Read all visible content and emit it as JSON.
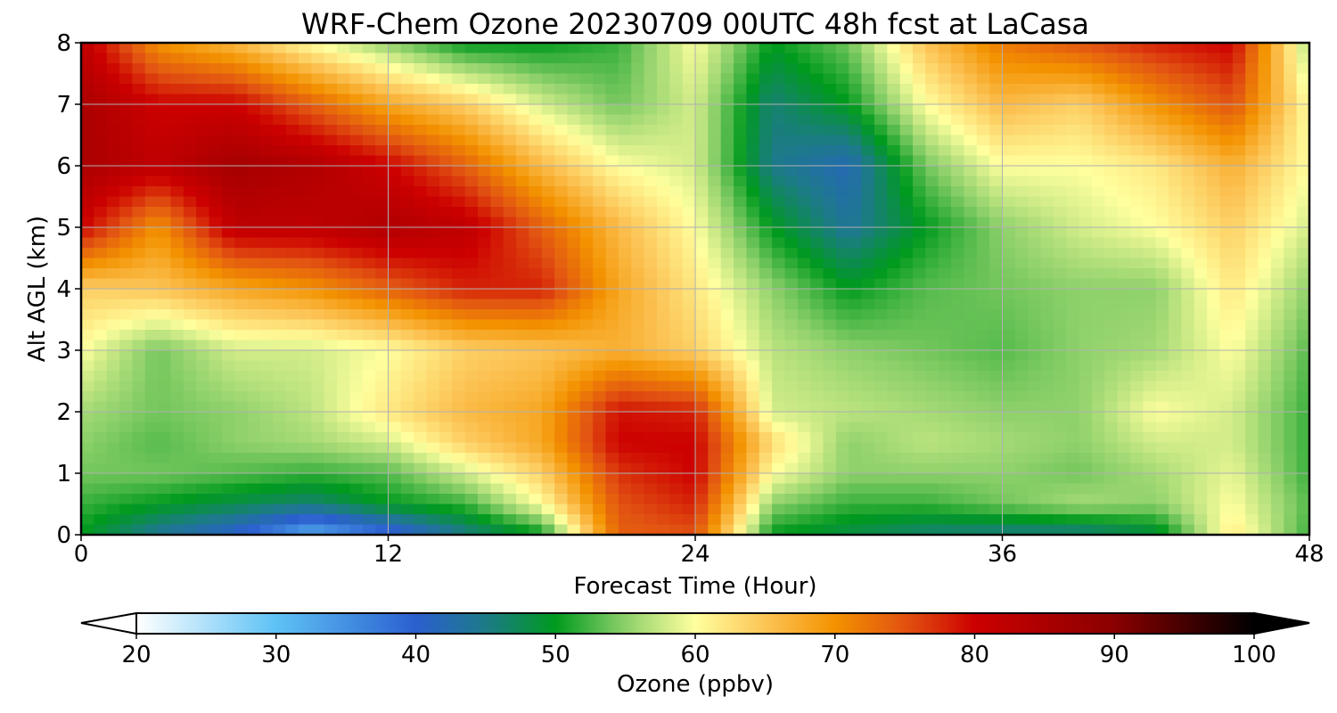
{
  "chart_data": {
    "type": "heatmap",
    "title": "WRF-Chem Ozone  20230709 00UTC 48h fcst at LaCasa",
    "xlabel": "Forecast Time (Hour)",
    "ylabel": "Alt AGL (km)",
    "xlim": [
      0,
      48
    ],
    "ylim": [
      0,
      8
    ],
    "x_ticks": [
      "0",
      "12",
      "24",
      "36",
      "48"
    ],
    "y_ticks": [
      "0",
      "1",
      "2",
      "3",
      "4",
      "5",
      "6",
      "7",
      "8"
    ],
    "grid": true,
    "colorbar": {
      "label": "Ozone  (ppbv)",
      "min": 20,
      "max": 100,
      "ticks": [
        "20",
        "30",
        "40",
        "50",
        "60",
        "70",
        "80",
        "90",
        "100"
      ],
      "extend": "both",
      "stops": [
        [
          20,
          "#ffffff"
        ],
        [
          30,
          "#5ec2f5"
        ],
        [
          40,
          "#2b5fcf"
        ],
        [
          45,
          "#1d7a8a"
        ],
        [
          50,
          "#009a1e"
        ],
        [
          55,
          "#8fd16b"
        ],
        [
          60,
          "#ffff9e"
        ],
        [
          65,
          "#fcc456"
        ],
        [
          70,
          "#f39200"
        ],
        [
          75,
          "#e25412"
        ],
        [
          80,
          "#cc0000"
        ],
        [
          90,
          "#8a0000"
        ],
        [
          100,
          "#000000"
        ]
      ]
    },
    "x": [
      0,
      3,
      6,
      9,
      12,
      15,
      18,
      21,
      24,
      27,
      30,
      33,
      36,
      39,
      42,
      45,
      48
    ],
    "y": [
      0,
      0.5,
      1,
      1.5,
      2,
      3,
      4,
      5,
      6,
      7,
      8
    ],
    "z": [
      [
        50,
        44,
        40,
        32,
        38,
        45,
        50,
        74,
        75,
        50,
        48,
        46,
        45,
        45,
        48,
        62,
        52
      ],
      [
        52,
        50,
        48,
        46,
        50,
        52,
        60,
        75,
        78,
        55,
        52,
        52,
        54,
        56,
        55,
        60,
        53
      ],
      [
        54,
        54,
        53,
        52,
        53,
        58,
        64,
        77,
        80,
        60,
        55,
        55,
        55,
        54,
        56,
        59,
        52
      ],
      [
        55,
        53,
        55,
        56,
        58,
        64,
        68,
        80,
        80,
        63,
        55,
        57,
        56,
        55,
        58,
        58,
        52
      ],
      [
        56,
        54,
        55,
        57,
        62,
        66,
        68,
        79,
        78,
        58,
        57,
        56,
        55,
        55,
        60,
        58,
        52
      ],
      [
        60,
        54,
        58,
        58,
        60,
        64,
        65,
        67,
        64,
        57,
        55,
        54,
        53,
        55,
        56,
        60,
        53
      ],
      [
        64,
        65,
        68,
        70,
        74,
        78,
        78,
        68,
        62,
        55,
        50,
        53,
        54,
        55,
        55,
        62,
        55
      ],
      [
        80,
        70,
        82,
        82,
        84,
        82,
        74,
        66,
        60,
        50,
        44,
        50,
        55,
        58,
        60,
        64,
        58
      ],
      [
        85,
        82,
        86,
        84,
        80,
        74,
        66,
        60,
        58,
        45,
        42,
        54,
        60,
        60,
        62,
        67,
        60
      ],
      [
        85,
        80,
        80,
        74,
        68,
        64,
        58,
        54,
        58,
        46,
        50,
        60,
        66,
        64,
        70,
        75,
        60
      ],
      [
        82,
        70,
        66,
        60,
        55,
        50,
        50,
        52,
        60,
        50,
        54,
        65,
        72,
        75,
        78,
        80,
        56
      ]
    ]
  }
}
